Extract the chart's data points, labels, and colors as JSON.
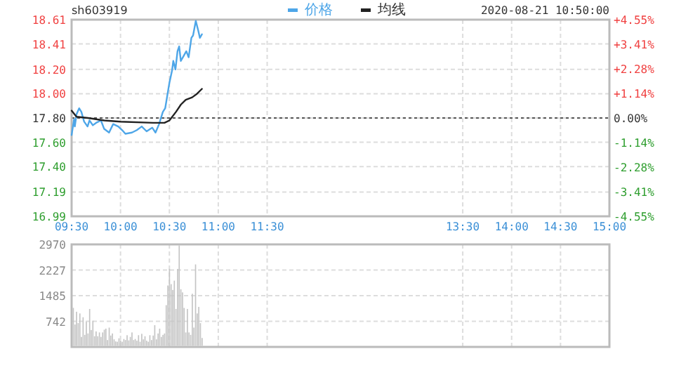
{
  "chart_data": [
    {
      "type": "line",
      "title": "sh603919",
      "annotations": [
        "2020-08-21 10:50:00"
      ],
      "legend": "top",
      "grid": true,
      "xlim": [
        9.5,
        15
      ],
      "xticks": [
        {
          "value": 9.5,
          "label": "09:30"
        },
        {
          "value": 10,
          "label": "10:00"
        },
        {
          "value": 10.5,
          "label": "10:30"
        },
        {
          "value": 11,
          "label": "11:00"
        },
        {
          "value": 11.5,
          "label": "11:30"
        },
        {
          "value": 13.5,
          "label": "13:30"
        },
        {
          "value": 14,
          "label": "14:00"
        },
        {
          "value": 14.5,
          "label": "14:30"
        },
        {
          "value": 15,
          "label": "15:00"
        }
      ],
      "ylim": [
        16.99,
        18.61
      ],
      "yticks": [
        {
          "value": 16.99,
          "label": "16.99"
        },
        {
          "value": 17.19,
          "label": "17.19"
        },
        {
          "value": 17.4,
          "label": "17.40"
        },
        {
          "value": 17.6,
          "label": "17.60"
        },
        {
          "value": 17.8,
          "label": "17.80"
        },
        {
          "value": 18,
          "label": "18.00"
        },
        {
          "value": 18.2,
          "label": "18.20"
        },
        {
          "value": 18.41,
          "label": "18.41"
        },
        {
          "value": 18.61,
          "label": "18.61"
        }
      ],
      "y2lim": [
        -4.55,
        4.55
      ],
      "y2ticks": [
        {
          "value": -4.55,
          "label": "-4.55%"
        },
        {
          "value": -3.41,
          "label": "-3.41%"
        },
        {
          "value": -2.28,
          "label": "-2.28%"
        },
        {
          "value": -1.14,
          "label": "-1.14%"
        },
        {
          "value": 0,
          "label": "0.00%"
        },
        {
          "value": 1.14,
          "label": "+1.14%"
        },
        {
          "value": 2.28,
          "label": "+2.28%"
        },
        {
          "value": 3.41,
          "label": "+3.41%"
        },
        {
          "value": 4.55,
          "label": "+4.55%"
        }
      ],
      "ref_lines": [
        {
          "axis": "y",
          "value": 17.8,
          "line_style": "dotted",
          "color": "#555555"
        }
      ],
      "series": [
        {
          "name": "价格",
          "color": "#4ea6e8",
          "x": [
            9.5,
            9.525,
            9.533,
            9.55,
            9.577,
            9.6,
            9.628,
            9.663,
            9.683,
            9.717,
            9.75,
            9.8,
            9.833,
            9.883,
            9.925,
            9.977,
            10.017,
            10.05,
            10.117,
            10.167,
            10.217,
            10.267,
            10.325,
            10.358,
            10.395,
            10.433,
            10.457,
            10.5,
            10.527,
            10.54,
            10.562,
            10.583,
            10.6,
            10.617,
            10.645,
            10.673,
            10.697,
            10.725,
            10.742,
            10.77,
            10.795,
            10.812,
            10.833
          ],
          "values": [
            17.66,
            17.79,
            17.73,
            17.83,
            17.88,
            17.85,
            17.77,
            17.73,
            17.78,
            17.74,
            17.76,
            17.78,
            17.71,
            17.68,
            17.75,
            17.73,
            17.7,
            17.67,
            17.68,
            17.7,
            17.73,
            17.69,
            17.72,
            17.68,
            17.75,
            17.85,
            17.88,
            18.09,
            18.19,
            18.27,
            18.2,
            18.35,
            18.39,
            18.27,
            18.31,
            18.35,
            18.3,
            18.46,
            18.48,
            18.6,
            18.52,
            18.46,
            18.49
          ]
        },
        {
          "name": "均线",
          "color": "#222222",
          "x": [
            9.5,
            9.55,
            9.667,
            9.833,
            10,
            10.333,
            10.45,
            10.5,
            10.567,
            10.617,
            10.667,
            10.733,
            10.783,
            10.833
          ],
          "values": [
            17.86,
            17.81,
            17.8,
            17.78,
            17.77,
            17.76,
            17.76,
            17.78,
            17.85,
            17.91,
            17.95,
            17.97,
            18.0,
            18.04
          ]
        }
      ]
    },
    {
      "type": "bar",
      "color": "#c4c4c4",
      "grid": true,
      "tick_labels": "y",
      "xlim": [
        9.5,
        15
      ],
      "xticks": [
        9.5,
        10,
        10.5,
        11,
        11.5,
        13.5,
        14,
        14.5,
        15
      ],
      "ylim": [
        0,
        2970
      ],
      "yticks": [
        {
          "value": 0,
          "label": null
        },
        742,
        1485,
        2227,
        2970
      ],
      "x": [
        9.5,
        9.517,
        9.533,
        9.55,
        9.567,
        9.583,
        9.6,
        9.617,
        9.633,
        9.65,
        9.667,
        9.683,
        9.7,
        9.717,
        9.733,
        9.75,
        9.767,
        9.783,
        9.8,
        9.817,
        9.833,
        9.85,
        9.867,
        9.883,
        9.9,
        9.917,
        9.933,
        9.95,
        9.967,
        9.983,
        10,
        10.017,
        10.033,
        10.05,
        10.067,
        10.083,
        10.1,
        10.117,
        10.133,
        10.15,
        10.167,
        10.183,
        10.2,
        10.217,
        10.233,
        10.25,
        10.267,
        10.283,
        10.3,
        10.317,
        10.333,
        10.35,
        10.367,
        10.383,
        10.4,
        10.417,
        10.433,
        10.45,
        10.467,
        10.483,
        10.5,
        10.517,
        10.533,
        10.55,
        10.567,
        10.583,
        10.6,
        10.617,
        10.633,
        10.65,
        10.667,
        10.683,
        10.7,
        10.717,
        10.733,
        10.75,
        10.767,
        10.783,
        10.8,
        10.817
      ],
      "values": [
        1130,
        650,
        1020,
        690,
        970,
        290,
        860,
        350,
        730,
        390,
        1100,
        490,
        760,
        310,
        450,
        310,
        420,
        290,
        420,
        500,
        530,
        200,
        560,
        330,
        390,
        220,
        160,
        150,
        250,
        190,
        150,
        230,
        200,
        340,
        190,
        290,
        420,
        200,
        230,
        180,
        340,
        150,
        380,
        220,
        310,
        180,
        150,
        340,
        200,
        330,
        630,
        220,
        390,
        530,
        290,
        350,
        390,
        1210,
        1780,
        2260,
        1820,
        1650,
        1920,
        1100,
        2260,
        2940,
        1670,
        1580,
        1130,
        420,
        1100,
        420,
        350,
        1540,
        560,
        2390,
        970,
        1160,
        690,
        260
      ]
    }
  ]
}
